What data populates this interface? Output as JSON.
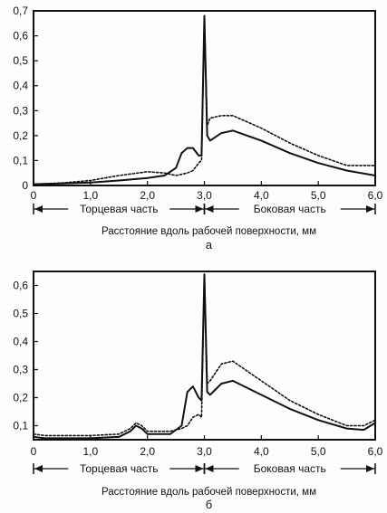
{
  "chart_data": [
    {
      "type": "line",
      "panel_label": "а",
      "xlabel": "Расстояние вдоль рабочей поверхности, мм",
      "xlim": [
        0,
        6.0
      ],
      "ylim": [
        0,
        0.7
      ],
      "x_ticks": [
        "0",
        "1,0",
        "2,0",
        "3,0",
        "4,0",
        "5,0",
        "6,0"
      ],
      "y_ticks": [
        "0",
        "0,1",
        "0,2",
        "0,3",
        "0,4",
        "0,5",
        "0,6",
        "0,7"
      ],
      "regions": [
        {
          "label": "Торцевая часть",
          "from": 0,
          "to": 3.0
        },
        {
          "label": "Боковая  часть",
          "from": 3.0,
          "to": 6.0
        }
      ],
      "series": [
        {
          "style": "solid",
          "x": [
            0,
            0.5,
            1.0,
            1.5,
            2.0,
            2.3,
            2.5,
            2.6,
            2.7,
            2.8,
            2.9,
            2.95,
            3.0,
            3.05,
            3.1,
            3.3,
            3.5,
            4.0,
            4.5,
            5.0,
            5.5,
            6.0
          ],
          "y": [
            0.005,
            0.008,
            0.012,
            0.02,
            0.03,
            0.04,
            0.07,
            0.13,
            0.15,
            0.15,
            0.12,
            0.12,
            0.68,
            0.2,
            0.18,
            0.21,
            0.22,
            0.18,
            0.13,
            0.09,
            0.06,
            0.04
          ]
        },
        {
          "style": "dotted",
          "x": [
            0,
            0.5,
            1.0,
            1.5,
            2.0,
            2.3,
            2.5,
            2.7,
            2.8,
            2.9,
            2.95,
            3.0,
            3.05,
            3.1,
            3.3,
            3.5,
            4.0,
            4.5,
            5.0,
            5.5,
            6.0
          ],
          "y": [
            0.005,
            0.01,
            0.02,
            0.04,
            0.055,
            0.05,
            0.04,
            0.05,
            0.06,
            0.09,
            0.1,
            0.68,
            0.24,
            0.27,
            0.28,
            0.28,
            0.23,
            0.17,
            0.12,
            0.08,
            0.08
          ]
        }
      ]
    },
    {
      "type": "line",
      "panel_label": "б",
      "xlabel": "Расстояние вдоль рабочей поверхности, мм",
      "xlim": [
        0,
        6.0
      ],
      "ylim": [
        0.05,
        0.65
      ],
      "x_ticks": [
        "0",
        "1,0",
        "2,0",
        "3,0",
        "4,0",
        "5,0",
        "6,0"
      ],
      "y_ticks": [
        "0,1",
        "0,2",
        "0,3",
        "0,4",
        "0,5",
        "0,6"
      ],
      "regions": [
        {
          "label": "Торцевая часть",
          "from": 0,
          "to": 3.0
        },
        {
          "label": "Боковая  часть",
          "from": 3.0,
          "to": 6.0
        }
      ],
      "series": [
        {
          "style": "solid",
          "x": [
            0,
            0.2,
            1.0,
            1.5,
            1.7,
            1.8,
            1.9,
            2.0,
            2.4,
            2.6,
            2.7,
            2.8,
            2.9,
            2.95,
            3.0,
            3.05,
            3.1,
            3.3,
            3.5,
            4.0,
            4.5,
            5.0,
            5.5,
            5.8,
            6.0
          ],
          "y": [
            0.06,
            0.055,
            0.055,
            0.06,
            0.08,
            0.1,
            0.09,
            0.07,
            0.07,
            0.1,
            0.22,
            0.24,
            0.2,
            0.19,
            0.64,
            0.22,
            0.21,
            0.25,
            0.26,
            0.21,
            0.16,
            0.12,
            0.09,
            0.085,
            0.11
          ]
        },
        {
          "style": "dotted",
          "x": [
            0,
            0.2,
            1.0,
            1.5,
            1.7,
            1.8,
            1.9,
            2.0,
            2.4,
            2.6,
            2.7,
            2.8,
            2.9,
            2.95,
            3.0,
            3.05,
            3.1,
            3.3,
            3.5,
            4.0,
            4.5,
            5.0,
            5.5,
            5.8,
            6.0
          ],
          "y": [
            0.07,
            0.065,
            0.065,
            0.07,
            0.09,
            0.11,
            0.1,
            0.08,
            0.08,
            0.09,
            0.1,
            0.13,
            0.14,
            0.13,
            0.64,
            0.25,
            0.26,
            0.32,
            0.33,
            0.26,
            0.19,
            0.14,
            0.1,
            0.1,
            0.12
          ]
        }
      ]
    }
  ]
}
